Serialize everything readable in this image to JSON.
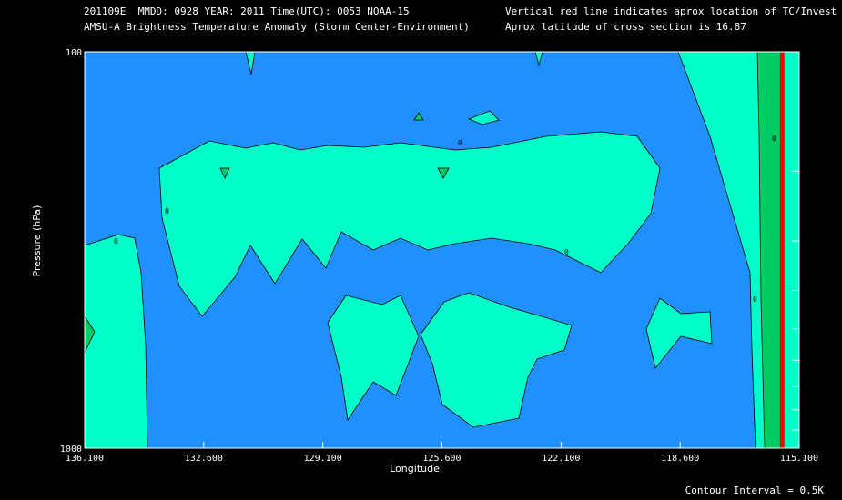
{
  "header": {
    "line1": "201109E  MMDD: 0928 YEAR: 2011 Time(UTC): 0053 NOAA-15",
    "line2": "AMSU-A Brightness Temperature Anomaly (Storm Center-Environment)",
    "line3": "Vertical red line indicates aprox location of TC/Invest",
    "line4": "Aprox latitude of cross section is 16.87"
  },
  "footer": {
    "contour_interval": "Contour Interval = 0.5K"
  },
  "colors": {
    "background": "#000000",
    "negative": "#1E90FF",
    "zero_band": "#00FFC8",
    "positive": "#00CC66",
    "storm_line": "#FF0000"
  },
  "chart_data": {
    "type": "contour",
    "xlabel": "Longitude",
    "ylabel": "Pressure (hPa)",
    "xlim": [
      136.1,
      115.1
    ],
    "ylim": [
      1000,
      100
    ],
    "y_scale": "log",
    "x_ticks": [
      "136.100",
      "132.600",
      "129.100",
      "125.600",
      "122.100",
      "118.600",
      "115.100"
    ],
    "y_tick_labels": [
      "100",
      "1000"
    ],
    "y_minor_ticks": [
      100,
      200,
      300,
      400,
      500,
      600,
      700,
      800,
      900,
      1000
    ],
    "contour_interval_K": 0.5,
    "storm_longitude": 115.6,
    "contour_labels": [
      "0",
      "0",
      "0",
      "0",
      "0",
      "0"
    ],
    "regions": [
      {
        "name": "negative-anomaly-field",
        "level": "below -0.5K"
      },
      {
        "name": "zero-anomaly-upper-band",
        "level": "-0.5K to 0K"
      },
      {
        "name": "zero-anomaly-lower-left-lobe",
        "level": "-0.5K to 0K"
      },
      {
        "name": "zero-anomaly-lower-center-lobe",
        "level": "-0.5K to 0K"
      },
      {
        "name": "zero-anomaly-lower-right-lobe",
        "level": "-0.5K to 0K"
      },
      {
        "name": "zero-anomaly-west-edge",
        "level": "-0.5K to 0K"
      },
      {
        "name": "zero-anomaly-east-wedge",
        "level": "-0.5K to 0K"
      },
      {
        "name": "positive-anomaly-east-strip",
        "level": "above 0K"
      }
    ]
  }
}
